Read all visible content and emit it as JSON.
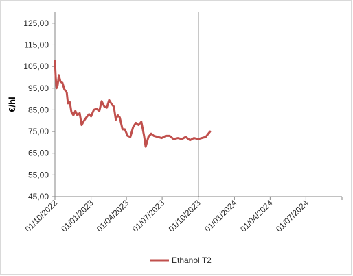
{
  "chart_data": {
    "type": "line",
    "ylabel": "€/hl",
    "xlabel": "",
    "title": "",
    "ylim": [
      45,
      130
    ],
    "yticks": [
      45,
      55,
      65,
      75,
      85,
      95,
      105,
      115,
      125
    ],
    "ytick_labels": [
      "45,00",
      "55,00",
      "65,00",
      "75,00",
      "85,00",
      "95,00",
      "105,00",
      "115,00",
      "125,00"
    ],
    "xlim": [
      "2022-10-01",
      "2024-10-01"
    ],
    "xticks": [
      "2022-10-01",
      "2023-01-01",
      "2023-04-01",
      "2023-07-01",
      "2023-10-01",
      "2024-01-01",
      "2024-04-01",
      "2024-07-01"
    ],
    "xtick_labels": [
      "01/10/2022",
      "01/01/2023",
      "01/04/2023",
      "01/07/2023",
      "01/10/2023",
      "01/01/2024",
      "01/04/2024",
      "01/07/2024"
    ],
    "vertical_line": "2023-10-01",
    "grid": false,
    "legend_position": "bottom",
    "series": [
      {
        "name": "Ethanol T2",
        "color": "#c0504d",
        "points": [
          [
            "2022-10-01",
            107.5
          ],
          [
            "2022-10-03",
            100.0
          ],
          [
            "2022-10-05",
            95.0
          ],
          [
            "2022-10-08",
            96.5
          ],
          [
            "2022-10-11",
            101.0
          ],
          [
            "2022-10-15",
            98.0
          ],
          [
            "2022-10-20",
            97.5
          ],
          [
            "2022-10-25",
            94.5
          ],
          [
            "2022-10-31",
            93.0
          ],
          [
            "2022-11-03",
            88.0
          ],
          [
            "2022-11-08",
            88.5
          ],
          [
            "2022-11-12",
            84.0
          ],
          [
            "2022-11-17",
            82.5
          ],
          [
            "2022-11-22",
            84.5
          ],
          [
            "2022-11-27",
            82.5
          ],
          [
            "2022-12-03",
            83.5
          ],
          [
            "2022-12-08",
            78.0
          ],
          [
            "2022-12-14",
            80.0
          ],
          [
            "2022-12-20",
            81.5
          ],
          [
            "2022-12-27",
            83.0
          ],
          [
            "2023-01-01",
            82.0
          ],
          [
            "2023-01-08",
            85.0
          ],
          [
            "2023-01-15",
            85.5
          ],
          [
            "2023-01-22",
            84.5
          ],
          [
            "2023-01-28",
            89.0
          ],
          [
            "2023-02-04",
            86.5
          ],
          [
            "2023-02-10",
            86.0
          ],
          [
            "2023-02-16",
            89.5
          ],
          [
            "2023-02-23",
            87.5
          ],
          [
            "2023-02-28",
            86.5
          ],
          [
            "2023-03-05",
            80.5
          ],
          [
            "2023-03-10",
            82.5
          ],
          [
            "2023-03-15",
            81.5
          ],
          [
            "2023-03-22",
            76.0
          ],
          [
            "2023-03-28",
            76.0
          ],
          [
            "2023-04-04",
            73.0
          ],
          [
            "2023-04-11",
            72.5
          ],
          [
            "2023-04-18",
            77.0
          ],
          [
            "2023-04-25",
            79.0
          ],
          [
            "2023-05-02",
            78.0
          ],
          [
            "2023-05-09",
            79.5
          ],
          [
            "2023-05-16",
            73.0
          ],
          [
            "2023-05-20",
            68.0
          ],
          [
            "2023-05-27",
            72.5
          ],
          [
            "2023-06-03",
            74.0
          ],
          [
            "2023-06-10",
            73.0
          ],
          [
            "2023-06-20",
            72.5
          ],
          [
            "2023-06-30",
            72.0
          ],
          [
            "2023-07-10",
            73.0
          ],
          [
            "2023-07-20",
            73.0
          ],
          [
            "2023-07-30",
            71.5
          ],
          [
            "2023-08-10",
            72.0
          ],
          [
            "2023-08-20",
            71.5
          ],
          [
            "2023-08-30",
            72.5
          ],
          [
            "2023-09-10",
            71.0
          ],
          [
            "2023-09-20",
            72.0
          ],
          [
            "2023-10-01",
            71.5
          ],
          [
            "2023-10-10",
            72.0
          ],
          [
            "2023-10-20",
            72.5
          ],
          [
            "2023-10-31",
            75.0
          ]
        ]
      }
    ]
  }
}
